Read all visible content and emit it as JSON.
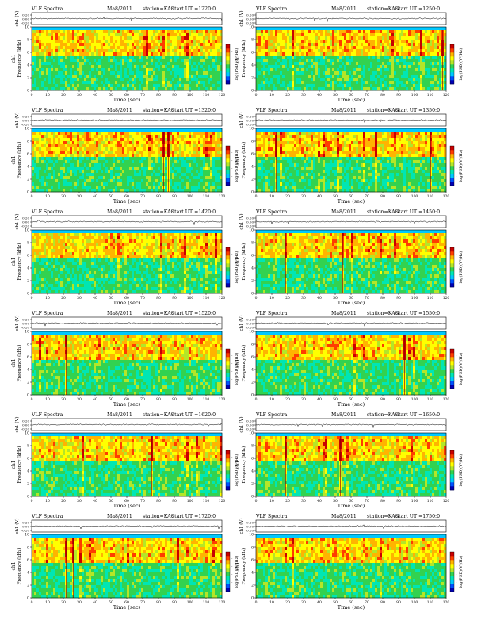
{
  "page": {
    "background": "#ffffff"
  },
  "colormap": [
    "#0000b4",
    "#0050ff",
    "#00c8ff",
    "#00e6b4",
    "#32d250",
    "#b4e628",
    "#ffff00",
    "#ffb400",
    "#ff3c00",
    "#c80000"
  ],
  "chart_data": [
    {
      "type": "heatmap",
      "title": "VLF Spectra",
      "date": "Ma8/2011",
      "station": "station=KAG",
      "start_ut": "start  UT  =1220:0",
      "top_ylabel": "ch1 (V)",
      "top_yticks": [
        "0.20",
        "0.00",
        "-0.20"
      ],
      "xlabel": "Time  (sec)",
      "xlim": [
        0,
        120
      ],
      "xticks": [
        "0",
        "10",
        "20",
        "30",
        "40",
        "50",
        "60",
        "70",
        "80",
        "90",
        "100",
        "110",
        "120"
      ],
      "ylabel": "Frequency  (kHz)",
      "yprefix": "ch1",
      "ylim": [
        0,
        10
      ],
      "yticks": [
        "0",
        "2",
        "4",
        "6",
        "8",
        "10"
      ],
      "colorbar_label": "log(PSD)(V²/Hz)",
      "colorbar_ticks": [
        "-",
        "-",
        "-",
        "-"
      ],
      "seed": 11
    },
    {
      "type": "heatmap",
      "title": "VLF Spectra",
      "date": "Ma8/2011",
      "station": "station=KAG",
      "start_ut": "start  UT  =1250:0",
      "top_ylabel": "ch1 (V)",
      "top_yticks": [
        "0.20",
        "0.00",
        "-0.20"
      ],
      "xlabel": "Time  (sec)",
      "xlim": [
        0,
        120
      ],
      "xticks": [
        "0",
        "10",
        "20",
        "30",
        "40",
        "50",
        "60",
        "70",
        "80",
        "90",
        "100",
        "110",
        "120"
      ],
      "ylabel": "Frequency  (kHz)",
      "yprefix": "ch1",
      "ylim": [
        0,
        10
      ],
      "yticks": [
        "0",
        "2",
        "4",
        "6",
        "8",
        "10"
      ],
      "colorbar_label": "log(PSD)(V²/Hz)",
      "colorbar_ticks": [
        "-",
        "-",
        "-",
        "-"
      ],
      "seed": 23
    },
    {
      "type": "heatmap",
      "title": "VLF Spectra",
      "date": "Ma8/2011",
      "station": "station=KAG",
      "start_ut": "start  UT  =1320:0",
      "top_ylabel": "ch1 (V)",
      "top_yticks": [
        "0.20",
        "0.00",
        "-0.20"
      ],
      "xlabel": "Time  (sec)",
      "xlim": [
        0,
        120
      ],
      "xticks": [
        "0",
        "10",
        "20",
        "30",
        "40",
        "50",
        "60",
        "70",
        "80",
        "90",
        "100",
        "110",
        "120"
      ],
      "ylabel": "Frequency  (kHz)",
      "yprefix": "ch1",
      "ylim": [
        0,
        10
      ],
      "yticks": [
        "0",
        "2",
        "4",
        "6",
        "8",
        "10"
      ],
      "colorbar_label": "log(PSD)(V²/Hz)",
      "colorbar_ticks": [
        "-",
        "-",
        "-",
        "-"
      ],
      "seed": 37
    },
    {
      "type": "heatmap",
      "title": "VLF Spectra",
      "date": "Ma8/2011",
      "station": "station=KAG",
      "start_ut": "start  UT  =1350:0",
      "top_ylabel": "ch1 (V)",
      "top_yticks": [
        "0.20",
        "0.00",
        "-0.20"
      ],
      "xlabel": "Time  (sec)",
      "xlim": [
        0,
        120
      ],
      "xticks": [
        "0",
        "10",
        "20",
        "30",
        "40",
        "50",
        "60",
        "70",
        "80",
        "90",
        "100",
        "110",
        "120"
      ],
      "ylabel": "Frequency  (kHz)",
      "yprefix": "ch1",
      "ylim": [
        0,
        10
      ],
      "yticks": [
        "0",
        "2",
        "4",
        "6",
        "8",
        "10"
      ],
      "colorbar_label": "log(PSD)(V²/Hz)",
      "colorbar_ticks": [
        "-",
        "-",
        "-",
        "-"
      ],
      "seed": 41
    },
    {
      "type": "heatmap",
      "title": "VLF Spectra",
      "date": "Ma8/2011",
      "station": "station=KAG",
      "start_ut": "start  UT  =1420:0",
      "top_ylabel": "ch1 (V)",
      "top_yticks": [
        "0.20",
        "0.00",
        "-0.20"
      ],
      "xlabel": "Time  (sec)",
      "xlim": [
        0,
        120
      ],
      "xticks": [
        "0",
        "10",
        "20",
        "30",
        "40",
        "50",
        "60",
        "70",
        "80",
        "90",
        "100",
        "110",
        "120"
      ],
      "ylabel": "Frequency  (kHz)",
      "yprefix": "ch1",
      "ylim": [
        0,
        10
      ],
      "yticks": [
        "0",
        "2",
        "4",
        "6",
        "8",
        "10"
      ],
      "colorbar_label": "log(PSD)(V²/Hz)",
      "colorbar_ticks": [
        "-",
        "-",
        "-",
        "-"
      ],
      "seed": 53
    },
    {
      "type": "heatmap",
      "title": "VLF Spectra",
      "date": "Ma8/2011",
      "station": "station=KAG",
      "start_ut": "start  UT  =1450:0",
      "top_ylabel": "ch1 (V)",
      "top_yticks": [
        "0.20",
        "0.00",
        "-0.20"
      ],
      "xlabel": "Time  (sec)",
      "xlim": [
        0,
        120
      ],
      "xticks": [
        "0",
        "10",
        "20",
        "30",
        "40",
        "50",
        "60",
        "70",
        "80",
        "90",
        "100",
        "110",
        "120"
      ],
      "ylabel": "Frequency  (kHz)",
      "yprefix": "ch1",
      "ylim": [
        0,
        10
      ],
      "yticks": [
        "0",
        "2",
        "4",
        "6",
        "8",
        "10"
      ],
      "colorbar_label": "log(PSD)(V²/Hz)",
      "colorbar_ticks": [
        "-",
        "-",
        "-",
        "-"
      ],
      "seed": 67
    },
    {
      "type": "heatmap",
      "title": "VLF Spectra",
      "date": "Ma8/2011",
      "station": "station=KAG",
      "start_ut": "start  UT  =1520:0",
      "top_ylabel": "ch1 (V)",
      "top_yticks": [
        "0.20",
        "0.00",
        "-0.20"
      ],
      "xlabel": "Time  (sec)",
      "xlim": [
        0,
        120
      ],
      "xticks": [
        "0",
        "10",
        "20",
        "30",
        "40",
        "50",
        "60",
        "70",
        "80",
        "90",
        "100",
        "110",
        "120"
      ],
      "ylabel": "Frequency  (kHz)",
      "yprefix": "ch1",
      "ylim": [
        0,
        10
      ],
      "yticks": [
        "0",
        "2",
        "4",
        "6",
        "8",
        "10"
      ],
      "colorbar_label": "log(PSD)(V²/Hz)",
      "colorbar_ticks": [
        "-",
        "-",
        "-",
        "-"
      ],
      "seed": 71
    },
    {
      "type": "heatmap",
      "title": "VLF Spectra",
      "date": "Ma8/2011",
      "station": "station=KAG",
      "start_ut": "start  UT  =1550:0",
      "top_ylabel": "ch1 (V)",
      "top_yticks": [
        "0.20",
        "0.00",
        "-0.20"
      ],
      "xlabel": "Time  (sec)",
      "xlim": [
        0,
        120
      ],
      "xticks": [
        "0",
        "10",
        "20",
        "30",
        "40",
        "50",
        "60",
        "70",
        "80",
        "90",
        "100",
        "110",
        "120"
      ],
      "ylabel": "Frequency  (kHz)",
      "yprefix": "ch1",
      "ylim": [
        0,
        10
      ],
      "yticks": [
        "0",
        "2",
        "4",
        "6",
        "8",
        "10"
      ],
      "colorbar_label": "log(PSD)(V²/Hz)",
      "colorbar_ticks": [
        "-",
        "-",
        "-",
        "-"
      ],
      "seed": 83
    },
    {
      "type": "heatmap",
      "title": "VLF Spectra",
      "date": "Ma8/2011",
      "station": "station=KAG",
      "start_ut": "start  UT  =1620:0",
      "top_ylabel": "ch1 (V)",
      "top_yticks": [
        "0.20",
        "0.00",
        "-0.20"
      ],
      "xlabel": "Time  (sec)",
      "xlim": [
        0,
        120
      ],
      "xticks": [
        "0",
        "10",
        "20",
        "30",
        "40",
        "50",
        "60",
        "70",
        "80",
        "90",
        "100",
        "110",
        "120"
      ],
      "ylabel": "Frequency  (kHz)",
      "yprefix": "ch1",
      "ylim": [
        0,
        10
      ],
      "yticks": [
        "0",
        "2",
        "4",
        "6",
        "8",
        "10"
      ],
      "colorbar_label": "log(PSD)(V²/Hz)",
      "colorbar_ticks": [
        "-",
        "-",
        "-",
        "-"
      ],
      "seed": 97
    },
    {
      "type": "heatmap",
      "title": "VLF Spectra",
      "date": "Ma8/2011",
      "station": "station=KAG",
      "start_ut": "start  UT  =1650:0",
      "top_ylabel": "ch1 (V)",
      "top_yticks": [
        "0.20",
        "0.00",
        "-0.20"
      ],
      "xlabel": "Time  (sec)",
      "xlim": [
        0,
        120
      ],
      "xticks": [
        "0",
        "10",
        "20",
        "30",
        "40",
        "50",
        "60",
        "70",
        "80",
        "90",
        "100",
        "110",
        "120"
      ],
      "ylabel": "Frequency  (kHz)",
      "yprefix": "ch1",
      "ylim": [
        0,
        10
      ],
      "yticks": [
        "0",
        "2",
        "4",
        "6",
        "8",
        "10"
      ],
      "colorbar_label": "log(PSD)(V²/Hz)",
      "colorbar_ticks": [
        "-",
        "-",
        "-",
        "-"
      ],
      "seed": 101
    },
    {
      "type": "heatmap",
      "title": "VLF Spectra",
      "date": "Ma8/2011",
      "station": "station=KAG",
      "start_ut": "start  UT  =1720:0",
      "top_ylabel": "ch1 (V)",
      "top_yticks": [
        "0.20",
        "0.00",
        "-0.20"
      ],
      "xlabel": "Time  (sec)",
      "xlim": [
        0,
        120
      ],
      "xticks": [
        "0",
        "10",
        "20",
        "30",
        "40",
        "50",
        "60",
        "70",
        "80",
        "90",
        "100",
        "110",
        "120"
      ],
      "ylabel": "Frequency  (kHz)",
      "yprefix": "ch1",
      "ylim": [
        0,
        10
      ],
      "yticks": [
        "0",
        "2",
        "4",
        "6",
        "8",
        "10"
      ],
      "colorbar_label": "log(PSD)(V²/Hz)",
      "colorbar_ticks": [
        "-",
        "-",
        "-",
        "-"
      ],
      "seed": 113
    },
    {
      "type": "heatmap",
      "title": "VLF Spectra",
      "date": "Ma8/2011",
      "station": "station=KAG",
      "start_ut": "start  UT  =1750:0",
      "top_ylabel": "ch1 (V)",
      "top_yticks": [
        "0.20",
        "0.00",
        "-0.20"
      ],
      "xlabel": "Time  (sec)",
      "xlim": [
        0,
        120
      ],
      "xticks": [
        "0",
        "10",
        "20",
        "30",
        "40",
        "50",
        "60",
        "70",
        "80",
        "90",
        "100",
        "110",
        "120"
      ],
      "ylabel": "Frequency  (kHz)",
      "yprefix": "ch1",
      "ylim": [
        0,
        10
      ],
      "yticks": [
        "0",
        "2",
        "4",
        "6",
        "8",
        "10"
      ],
      "colorbar_label": "log(PSD)(V²/Hz)",
      "colorbar_ticks": [
        "-",
        "-",
        "-",
        "-"
      ],
      "seed": 127
    }
  ]
}
